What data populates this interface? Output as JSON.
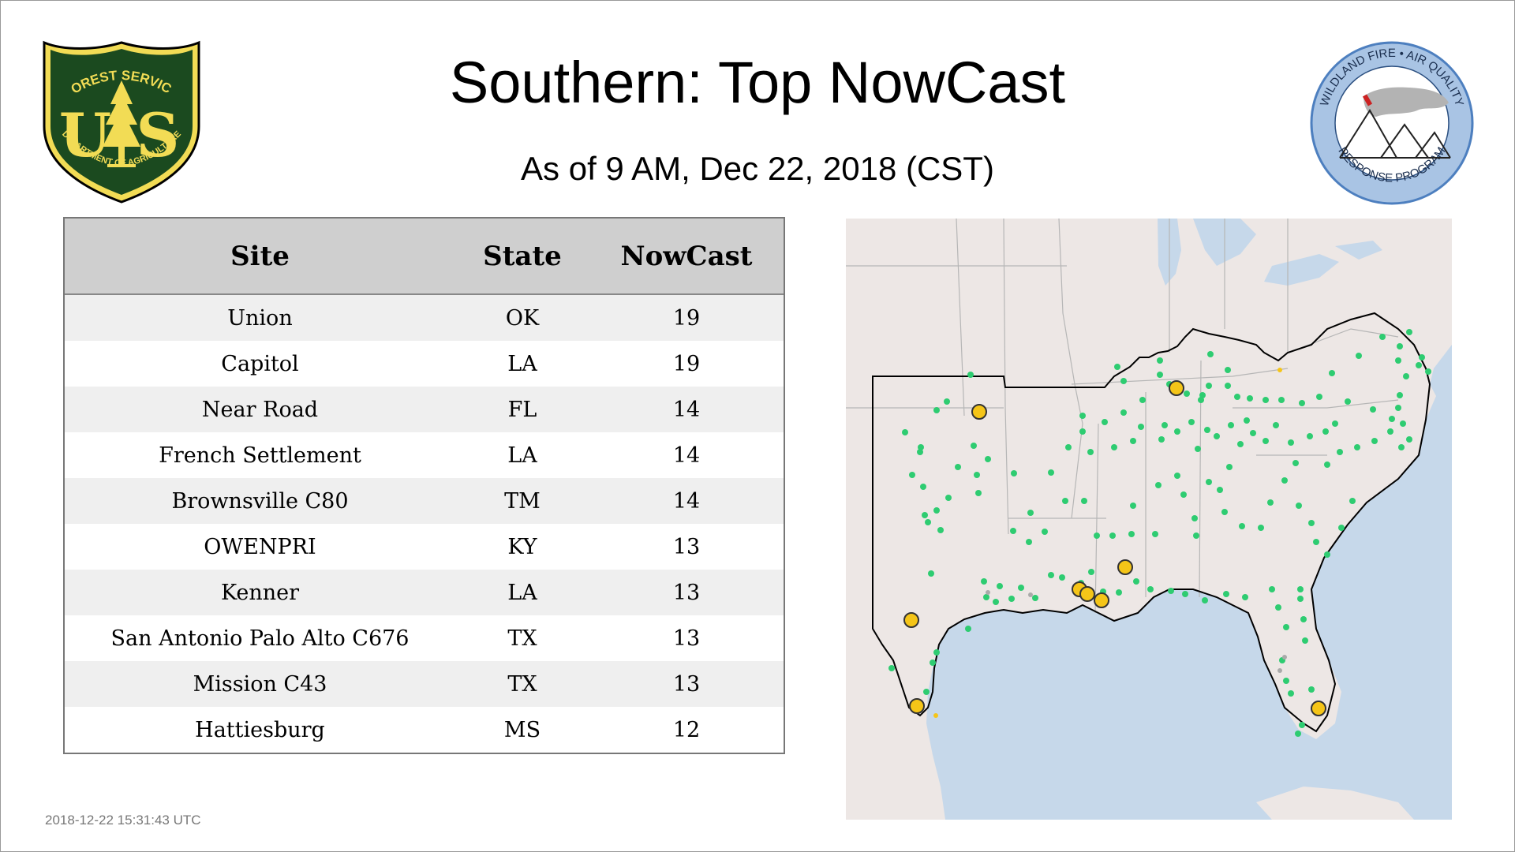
{
  "header": {
    "title": "Southern: Top NowCast",
    "subtitle": "As of  9 AM, Dec 22, 2018 (CST)"
  },
  "logos": {
    "forest_service": {
      "top_text": "FOREST SERVICE",
      "bottom_text": "DEPARTMENT OF AGRICULTURE",
      "letters_left": "U",
      "letters_right": "S",
      "colors": {
        "green": "#1b4a1f",
        "gold": "#f2dc55",
        "outline": "#000000"
      }
    },
    "wildland_fire": {
      "top_text": "WILDLAND FIRE • AIR QUALITY",
      "bottom_text": "RESPONSE PROGRAM",
      "colors": {
        "ring": "#a9c4e4",
        "border": "#4d7fbf"
      }
    }
  },
  "table": {
    "headers": [
      "Site",
      "State",
      "NowCast"
    ],
    "rows": [
      {
        "site": "Union",
        "state": "OK",
        "nowcast": "19"
      },
      {
        "site": "Capitol",
        "state": "LA",
        "nowcast": "19"
      },
      {
        "site": "Near Road",
        "state": "FL",
        "nowcast": "14"
      },
      {
        "site": "French Settlement",
        "state": "LA",
        "nowcast": "14"
      },
      {
        "site": "Brownsville C80",
        "state": "TM",
        "nowcast": "14"
      },
      {
        "site": "OWENPRI",
        "state": "KY",
        "nowcast": "13"
      },
      {
        "site": "Kenner",
        "state": "LA",
        "nowcast": "13"
      },
      {
        "site": "San Antonio Palo Alto C676",
        "state": "TX",
        "nowcast": "13"
      },
      {
        "site": "Mission C43",
        "state": "TX",
        "nowcast": "13"
      },
      {
        "site": "Hattiesburg",
        "state": "MS",
        "nowcast": "12"
      }
    ]
  },
  "map": {
    "colors": {
      "land": "#ede7e5",
      "water": "#c6d8ea",
      "border": "#b6b6b6",
      "region_outline": "#000000",
      "good_marker": "#2ecc71",
      "moderate_marker": "#f5c518",
      "marker_outline": "#333333"
    }
  },
  "footer": {
    "timestamp": "2018-12-22 15:31:43 UTC"
  }
}
